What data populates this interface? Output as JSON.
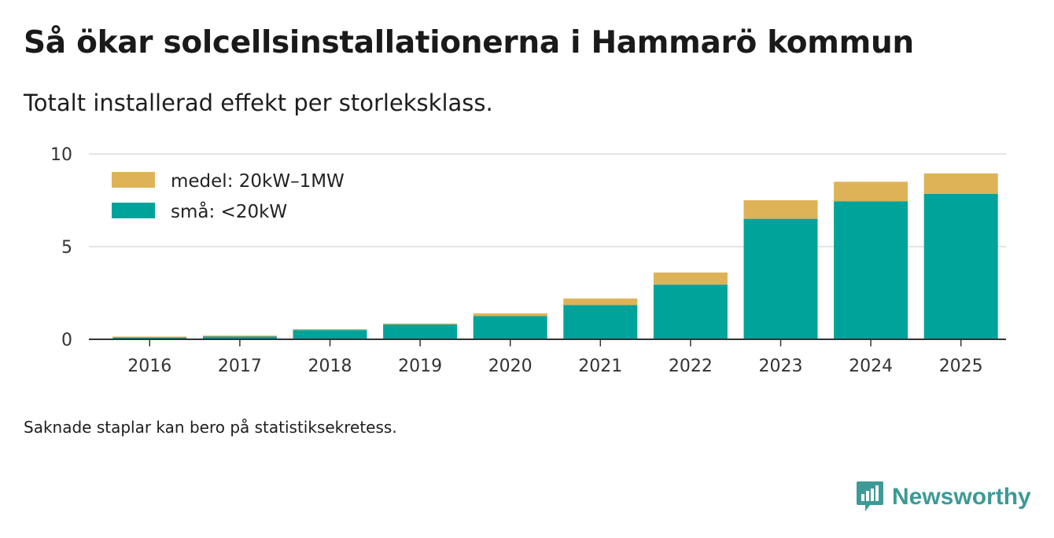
{
  "title": "Så ökar solcellsinstallationerna i Hammarö kommun",
  "subtitle": "Totalt installerad effekt per storleksklass.",
  "note": "Saknade staplar kan bero på statistiksekretess.",
  "brand": {
    "name": "Newsworthy",
    "icon": "bar-chart-chat-icon",
    "color": "#3d9a96"
  },
  "chart_data": {
    "type": "bar",
    "stacked": true,
    "title": "Så ökar solcellsinstallationerna i Hammarö kommun",
    "subtitle": "Totalt installerad effekt per storleksklass.",
    "xlabel": "",
    "ylabel": "",
    "ylim": [
      0,
      10
    ],
    "yticks": [
      0,
      5,
      10
    ],
    "grid": true,
    "legend_position": "top-left",
    "categories": [
      "2016",
      "2017",
      "2018",
      "2019",
      "2020",
      "2021",
      "2022",
      "2023",
      "2024",
      "2025"
    ],
    "series": [
      {
        "name": "små: <20kW",
        "color": "#00a39a",
        "values": [
          0.1,
          0.15,
          0.5,
          0.8,
          1.25,
          1.85,
          2.95,
          6.5,
          7.45,
          7.85
        ]
      },
      {
        "name": "medel: 20kW–1MW",
        "color": "#deb257",
        "values": [
          0.05,
          0.05,
          0.05,
          0.05,
          0.15,
          0.35,
          0.65,
          1.0,
          1.05,
          1.1
        ]
      }
    ]
  }
}
